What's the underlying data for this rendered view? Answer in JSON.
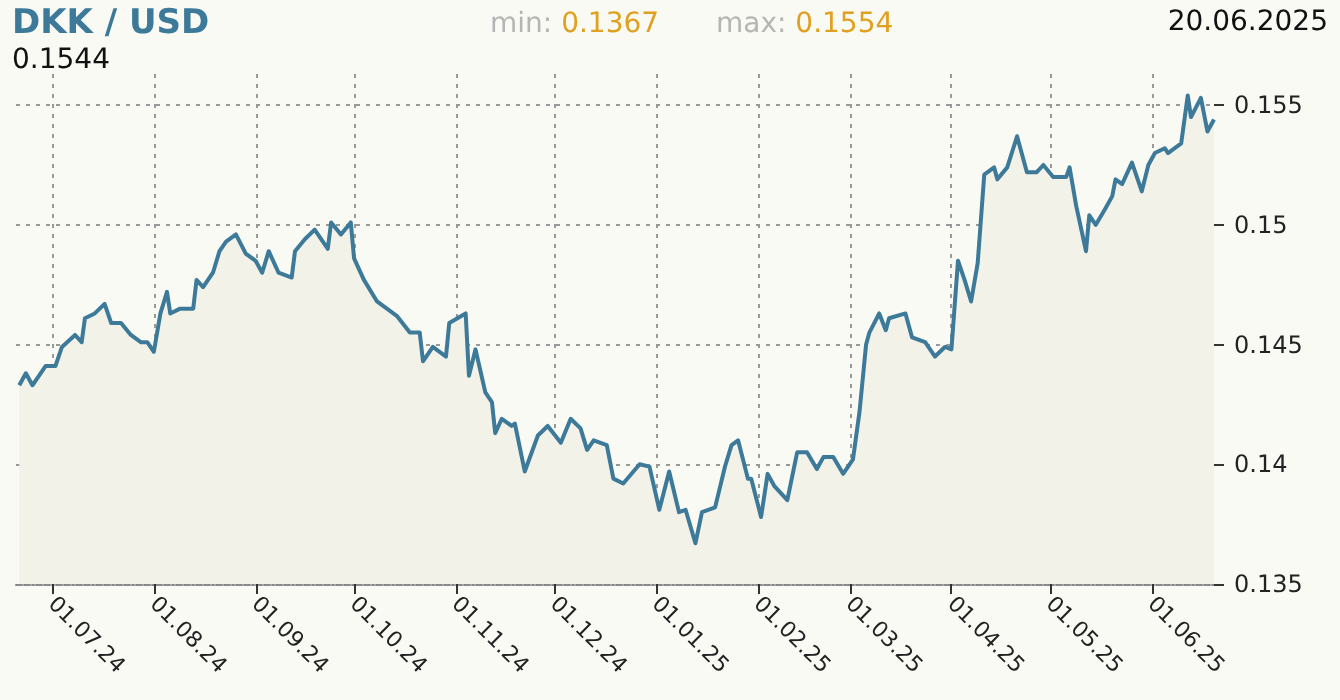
{
  "chart_data": {
    "type": "area",
    "title": "DKK / USD",
    "annotations": [
      "min: 0.1367",
      "max: 0.1554",
      "20.06.2025",
      "0.1544"
    ],
    "x": [
      "2024-06-21",
      "2024-06-23",
      "2024-06-25",
      "2024-06-29",
      "2024-07-02",
      "2024-07-04",
      "2024-07-08",
      "2024-07-10",
      "2024-07-11",
      "2024-07-14",
      "2024-07-17",
      "2024-07-19",
      "2024-07-22",
      "2024-07-25",
      "2024-07-28",
      "2024-07-30",
      "2024-08-01",
      "2024-08-03",
      "2024-08-05",
      "2024-08-06",
      "2024-08-09",
      "2024-08-13",
      "2024-08-14",
      "2024-08-16",
      "2024-08-19",
      "2024-08-21",
      "2024-08-23",
      "2024-08-26",
      "2024-08-29",
      "2024-09-01",
      "2024-09-03",
      "2024-09-05",
      "2024-09-08",
      "2024-09-12",
      "2024-09-13",
      "2024-09-16",
      "2024-09-19",
      "2024-09-23",
      "2024-09-24",
      "2024-09-27",
      "2024-09-30",
      "2024-10-01",
      "2024-10-04",
      "2024-10-08",
      "2024-10-14",
      "2024-10-18",
      "2024-10-21",
      "2024-10-22",
      "2024-10-25",
      "2024-10-29",
      "2024-10-30",
      "2024-11-04",
      "2024-11-05",
      "2024-11-07",
      "2024-11-10",
      "2024-11-12",
      "2024-11-13",
      "2024-11-15",
      "2024-11-18",
      "2024-11-19",
      "2024-11-22",
      "2024-11-26",
      "2024-11-29",
      "2024-12-03",
      "2024-12-06",
      "2024-12-09",
      "2024-12-11",
      "2024-12-13",
      "2024-12-17",
      "2024-12-19",
      "2024-12-22",
      "2024-12-27",
      "2024-12-30",
      "2025-01-02",
      "2025-01-05",
      "2025-01-08",
      "2025-01-10",
      "2025-01-13",
      "2025-01-15",
      "2025-01-19",
      "2025-01-22",
      "2025-01-24",
      "2025-01-26",
      "2025-01-29",
      "2025-01-30",
      "2025-02-02",
      "2025-02-04",
      "2025-02-06",
      "2025-02-10",
      "2025-02-13",
      "2025-02-16",
      "2025-02-19",
      "2025-02-21",
      "2025-02-24",
      "2025-02-27",
      "2025-03-02",
      "2025-03-04",
      "2025-03-06",
      "2025-03-07",
      "2025-03-10",
      "2025-03-12",
      "2025-03-13",
      "2025-03-18",
      "2025-03-20",
      "2025-03-24",
      "2025-03-27",
      "2025-03-30",
      "2025-04-01",
      "2025-04-03",
      "2025-04-05",
      "2025-04-07",
      "2025-04-09",
      "2025-04-11",
      "2025-04-14",
      "2025-04-15",
      "2025-04-18",
      "2025-04-21",
      "2025-04-24",
      "2025-04-27",
      "2025-04-29",
      "2025-05-02",
      "2025-05-06",
      "2025-05-07",
      "2025-05-09",
      "2025-05-12",
      "2025-05-13",
      "2025-05-15",
      "2025-05-18",
      "2025-05-20",
      "2025-05-21",
      "2025-05-23",
      "2025-05-26",
      "2025-05-29",
      "2025-05-31",
      "2025-06-02",
      "2025-06-05",
      "2025-06-06",
      "2025-06-10",
      "2025-06-12",
      "2025-06-13",
      "2025-06-16",
      "2025-06-18",
      "2025-06-20"
    ],
    "series": [
      {
        "color": "#3d7a99",
        "values": [
          0.1433,
          0.1438,
          0.1433,
          0.1441,
          0.1441,
          0.1449,
          0.1454,
          0.1451,
          0.1461,
          0.1463,
          0.1467,
          0.1459,
          0.1459,
          0.1454,
          0.1451,
          0.1451,
          0.1447,
          0.1463,
          0.1472,
          0.1463,
          0.1465,
          0.1465,
          0.1477,
          0.1474,
          0.148,
          0.1489,
          0.1493,
          0.1496,
          0.1488,
          0.1485,
          0.148,
          0.1489,
          0.148,
          0.1478,
          0.1489,
          0.1494,
          0.1498,
          0.149,
          0.1501,
          0.1496,
          0.1501,
          0.1486,
          0.1477,
          0.1468,
          0.1462,
          0.1455,
          0.1455,
          0.1443,
          0.1449,
          0.1445,
          0.1459,
          0.1463,
          0.1437,
          0.1448,
          0.143,
          0.1426,
          0.1413,
          0.1419,
          0.1416,
          0.1417,
          0.1397,
          0.1412,
          0.1416,
          0.1409,
          0.1419,
          0.1415,
          0.1406,
          0.141,
          0.1408,
          0.1394,
          0.1392,
          0.14,
          0.1399,
          0.1381,
          0.1397,
          0.138,
          0.1381,
          0.1367,
          0.138,
          0.1382,
          0.1399,
          0.1408,
          0.141,
          0.1394,
          0.1394,
          0.1378,
          0.1396,
          0.1391,
          0.1385,
          0.1405,
          0.1405,
          0.1398,
          0.1403,
          0.1403,
          0.1396,
          0.1402,
          0.1422,
          0.145,
          0.1455,
          0.1463,
          0.1456,
          0.1461,
          0.1463,
          0.1453,
          0.1451,
          0.1445,
          0.1449,
          0.1448,
          0.1485,
          0.1477,
          0.1468,
          0.1484,
          0.1521,
          0.1524,
          0.1519,
          0.1524,
          0.1537,
          0.1522,
          0.1522,
          0.1525,
          0.152,
          0.152,
          0.1524,
          0.1508,
          0.1489,
          0.1504,
          0.15,
          0.1507,
          0.1512,
          0.1519,
          0.1517,
          0.1526,
          0.1514,
          0.1525,
          0.153,
          0.1532,
          0.153,
          0.1534,
          0.1554,
          0.1545,
          0.1553,
          0.1539,
          0.1544
        ]
      }
    ],
    "xlim": [
      "2024-06-20",
      "2025-06-20"
    ],
    "xticks": [
      {
        "value": "2024-07-01",
        "label": "01.07.24"
      },
      {
        "value": "2024-08-01",
        "label": "01.08.24"
      },
      {
        "value": "2024-09-01",
        "label": "01.09.24"
      },
      {
        "value": "2024-10-01",
        "label": "01.10.24"
      },
      {
        "value": "2024-11-01",
        "label": "01.11.24"
      },
      {
        "value": "2024-12-01",
        "label": "01.12.24"
      },
      {
        "value": "2025-01-01",
        "label": "01.01.25"
      },
      {
        "value": "2025-02-01",
        "label": "01.02.25"
      },
      {
        "value": "2025-03-01",
        "label": "01.03.25"
      },
      {
        "value": "2025-04-01",
        "label": "01.04.25"
      },
      {
        "value": "2025-05-01",
        "label": "01.05.25"
      },
      {
        "value": "2025-06-01",
        "label": "01.06.25"
      }
    ],
    "ylim": [
      0.135,
      0.1563
    ],
    "yticks": [
      0.135,
      0.14,
      0.145,
      0.15,
      0.155
    ],
    "grid": true,
    "marker": "none",
    "line_style": "solid"
  }
}
